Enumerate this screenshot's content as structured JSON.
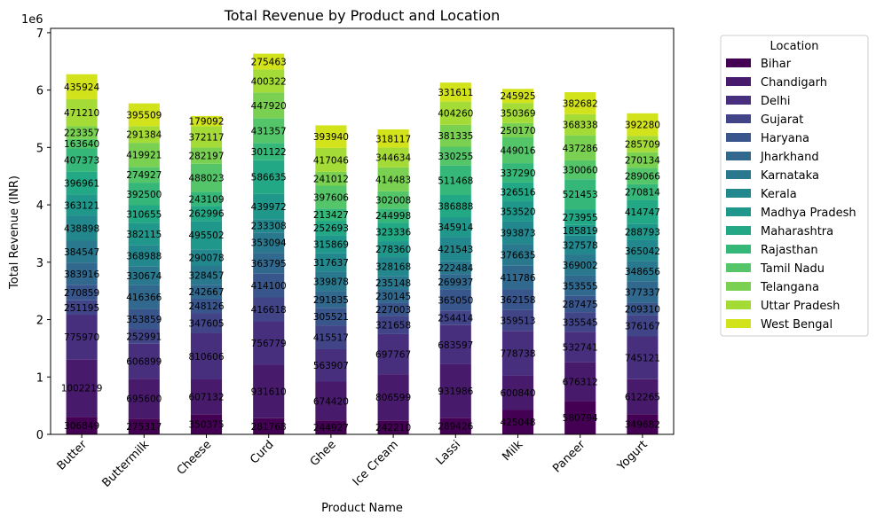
{
  "chart_data": {
    "type": "bar",
    "stacked": true,
    "title": "Total Revenue by Product and Location",
    "xlabel": "Product Name",
    "ylabel": "Total Revenue (INR)",
    "y_offset_text": "1e6",
    "ylim": [
      0,
      7075200
    ],
    "yticks": [
      0,
      1000000,
      2000000,
      3000000,
      4000000,
      5000000,
      6000000,
      7000000
    ],
    "ytick_labels": [
      "0",
      "1",
      "2",
      "3",
      "4",
      "5",
      "6",
      "7"
    ],
    "categories": [
      "Butter",
      "Buttermilk",
      "Cheese",
      "Curd",
      "Ghee",
      "Ice Cream",
      "Lassi",
      "Milk",
      "Paneer",
      "Yogurt"
    ],
    "legend": {
      "title": "Location",
      "placement": "outside-right"
    },
    "grid": false,
    "series": [
      {
        "name": "Bihar",
        "color": "#440154",
        "values": [
          306849,
          275317,
          350375,
          281768,
          244927,
          242210,
          289426,
          425048,
          580794,
          349682
        ]
      },
      {
        "name": "Chandigarh",
        "color": "#481a6c",
        "values": [
          1002219,
          695600,
          607132,
          931610,
          674420,
          806599,
          931986,
          600840,
          676312,
          612265
        ]
      },
      {
        "name": "Delhi",
        "color": "#472f7d",
        "values": [
          775970,
          606899,
          810606,
          756779,
          563907,
          697767,
          683597,
          778738,
          532741,
          745121
        ]
      },
      {
        "name": "Gujarat",
        "color": "#414487",
        "values": [
          251195,
          252991,
          347605,
          416618,
          415517,
          321658,
          254414,
          359513,
          335545,
          376167
        ]
      },
      {
        "name": "Haryana",
        "color": "#39568c",
        "values": [
          270859,
          353859,
          248126,
          414100,
          305521,
          227003,
          365050,
          362158,
          287475,
          209310
        ]
      },
      {
        "name": "Jharkhand",
        "color": "#31688e",
        "values": [
          383916,
          416366,
          242667,
          363795,
          291835,
          230145,
          269937,
          411786,
          353555,
          377337
        ]
      },
      {
        "name": "Karnataka",
        "color": "#2a788e",
        "values": [
          384547,
          330674,
          328457,
          353094,
          339878,
          235148,
          222484,
          376635,
          369002,
          348656
        ]
      },
      {
        "name": "Kerala",
        "color": "#23888e",
        "values": [
          438898,
          368988,
          290078,
          233308,
          317637,
          328168,
          421543,
          393873,
          327578,
          365042
        ]
      },
      {
        "name": "Madhya Pradesh",
        "color": "#1f988b",
        "values": [
          363121,
          382115,
          495502,
          439972,
          315869,
          278360,
          345914,
          353520,
          185819,
          288793
        ]
      },
      {
        "name": "Maharashtra",
        "color": "#22a884",
        "values": [
          396961,
          310655,
          262996,
          586635,
          252693,
          323336,
          386888,
          326516,
          273955,
          414747
        ]
      },
      {
        "name": "Rajasthan",
        "color": "#35b779",
        "values": [
          407373,
          392500,
          243109,
          301122,
          213427,
          244998,
          511468,
          337290,
          521453,
          270814
        ]
      },
      {
        "name": "Tamil Nadu",
        "color": "#54c568",
        "values": [
          163640,
          274927,
          488023,
          431357,
          397606,
          302008,
          330255,
          449016,
          330060,
          289066
        ]
      },
      {
        "name": "Telangana",
        "color": "#7ad151",
        "values": [
          223357,
          419921,
          282197,
          447920,
          241012,
          414483,
          381335,
          250170,
          437286,
          270134
        ]
      },
      {
        "name": "Uttar Pradesh",
        "color": "#a5db36",
        "values": [
          471210,
          291384,
          372117,
          400322,
          417046,
          344634,
          404260,
          350369,
          368338,
          285709
        ]
      },
      {
        "name": "West Bengal",
        "color": "#d2e21b",
        "values": [
          435924,
          395509,
          179092,
          275463,
          393940,
          318117,
          331611,
          245925,
          382682,
          392280
        ]
      }
    ]
  }
}
